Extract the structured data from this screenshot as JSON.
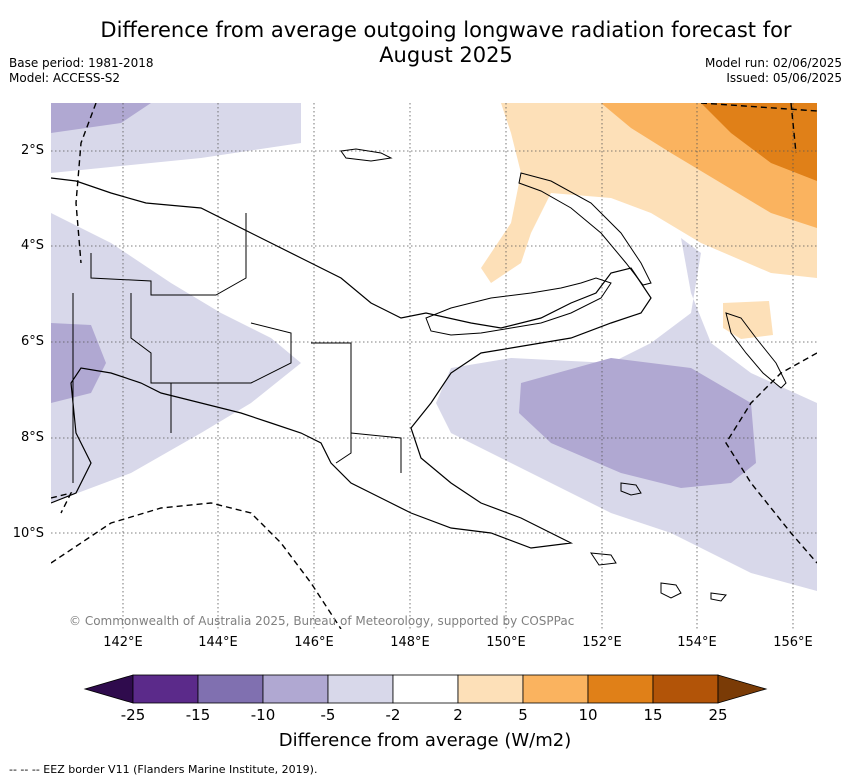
{
  "title_line1": "Difference from average outgoing longwave radiation forecast for",
  "title_line2": "August 2025",
  "base_period": "Base period: 1981-2018",
  "model": "Model: ACCESS-S2",
  "model_run": "Model run: 02/06/2025",
  "issued": "Issued: 05/06/2025",
  "lat_labels": [
    "2°S",
    "4°S",
    "6°S",
    "8°S",
    "10°S"
  ],
  "lon_labels": [
    "142°E",
    "144°E",
    "146°E",
    "148°E",
    "150°E",
    "152°E",
    "154°E",
    "156°E"
  ],
  "copyright": "© Commonwealth of Australia 2025, Bureau of Meteorology, supported by COSPPac",
  "colorbar": {
    "ticks": [
      "-25",
      "-15",
      "-10",
      "-5",
      "-2",
      "2",
      "5",
      "10",
      "15",
      "25"
    ],
    "colors": [
      "#2f0b4d",
      "#5b2a8a",
      "#8070b0",
      "#b0a8d2",
      "#d8d8ea",
      "#ffffff",
      "#fde0b8",
      "#fab35f",
      "#e08018",
      "#b25408",
      "#7a3b06"
    ],
    "title": "Difference from average (W/m2)"
  },
  "footnote": "--  --  -- EEZ border V11 (Flanders Marine Institute, 2019)."
}
